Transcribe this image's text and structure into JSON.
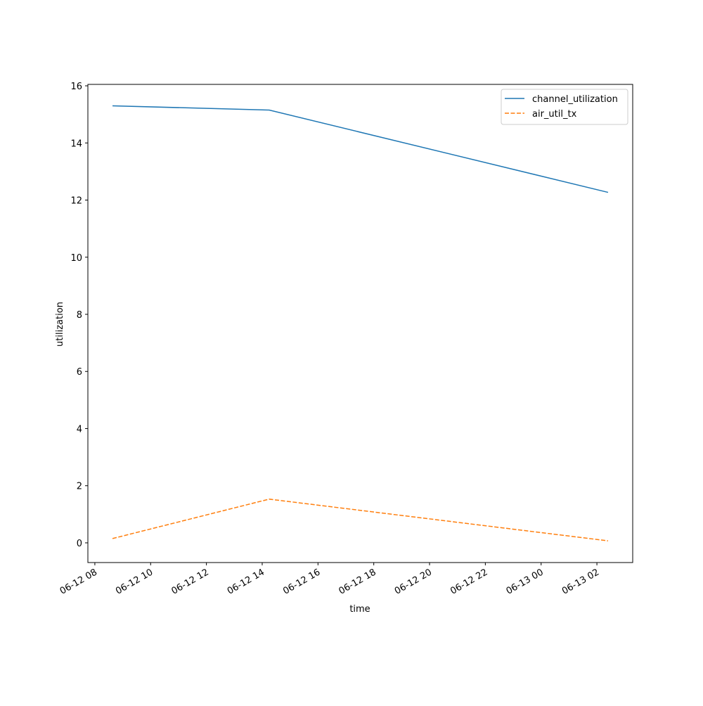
{
  "chart_data": {
    "type": "line",
    "x_label": "time",
    "y_label": "utilization",
    "x": [
      "06-12 08:38",
      "06-12 14:15",
      "06-13 02:24"
    ],
    "series": [
      {
        "name": "channel_utilization",
        "color": "#1f77b4",
        "dash": "solid",
        "values": [
          15.3,
          15.15,
          12.27
        ]
      },
      {
        "name": "air_util_tx",
        "color": "#ff7f0e",
        "dash": "dashed",
        "values": [
          0.15,
          1.53,
          0.07
        ]
      }
    ],
    "xlim": [
      "06-12 07:45",
      "06-13 03:17"
    ],
    "xticks": [
      "06-12 08",
      "06-12 10",
      "06-12 12",
      "06-12 14",
      "06-12 16",
      "06-12 18",
      "06-12 20",
      "06-12 22",
      "06-13 00",
      "06-13 02"
    ],
    "ylim": [
      -0.69,
      16.05
    ],
    "yticks": [
      0,
      2,
      4,
      6,
      8,
      10,
      12,
      14,
      16
    ],
    "grid": false,
    "legend": "upper right"
  }
}
